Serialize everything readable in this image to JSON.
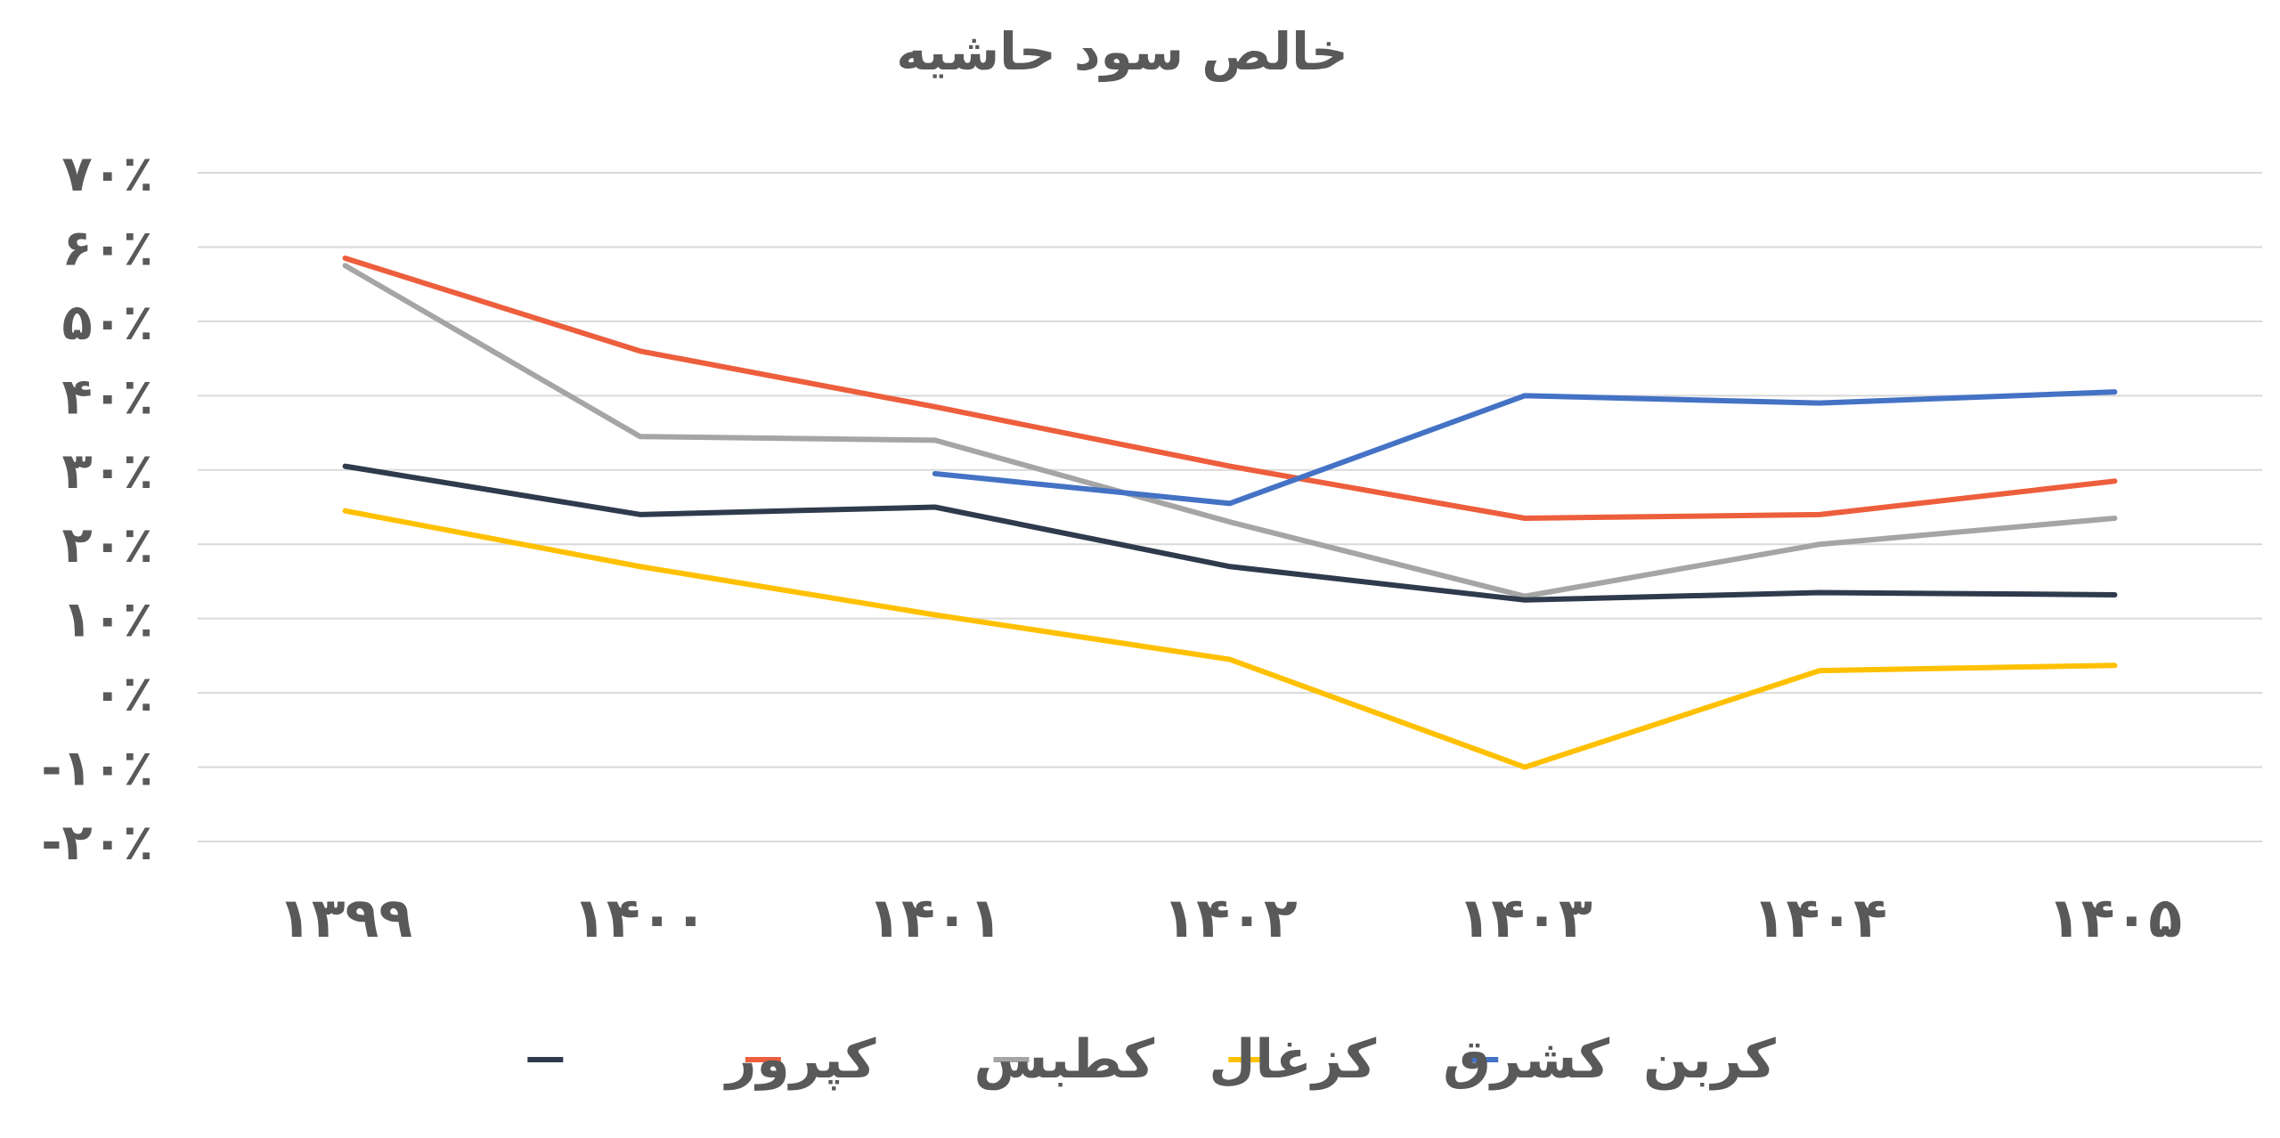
{
  "chart_data": {
    "type": "line",
    "title": "خالص سود حاشیه",
    "xlabel": "",
    "ylabel": "",
    "categories": [
      "۱۳۹۹",
      "۱۴۰۰",
      "۱۴۰۱",
      "۱۴۰۲",
      "۱۴۰۳",
      "۱۴۰۴",
      "۱۴۰۵"
    ],
    "ylim": [
      -20,
      70
    ],
    "yticks": [
      70,
      60,
      50,
      40,
      30,
      20,
      10,
      0,
      -10,
      -20
    ],
    "ytick_labels": [
      "۷۰٪",
      "۶۰٪",
      "۵۰٪",
      "۴۰٪",
      "۳۰٪",
      "۲۰٪",
      "۱۰٪",
      "۰٪",
      "-۱۰٪",
      "-۲۰٪"
    ],
    "grid": true,
    "legend_position": "bottom",
    "series": [
      {
        "name": "کربن",
        "color": "#4472C4",
        "values": [
          null,
          null,
          29.5,
          25.5,
          40,
          39,
          40.5
        ]
      },
      {
        "name": "کشرق",
        "color": "#FFC000",
        "values": [
          24.5,
          17,
          10.5,
          4.5,
          -10,
          3,
          3.7
        ]
      },
      {
        "name": "کزغال",
        "color": "#A5A5A5",
        "values": [
          57.5,
          34.5,
          34,
          23,
          13,
          20,
          23.5
        ]
      },
      {
        "name": "کطبس",
        "color": "#ED5E3D",
        "values": [
          58.5,
          46,
          38.5,
          30.5,
          23.5,
          24,
          28.5
        ]
      },
      {
        "name": "کپرور",
        "color": "#2F3B4C",
        "values": [
          30.5,
          24,
          25,
          17,
          12.5,
          13.5,
          13.2
        ]
      }
    ]
  }
}
